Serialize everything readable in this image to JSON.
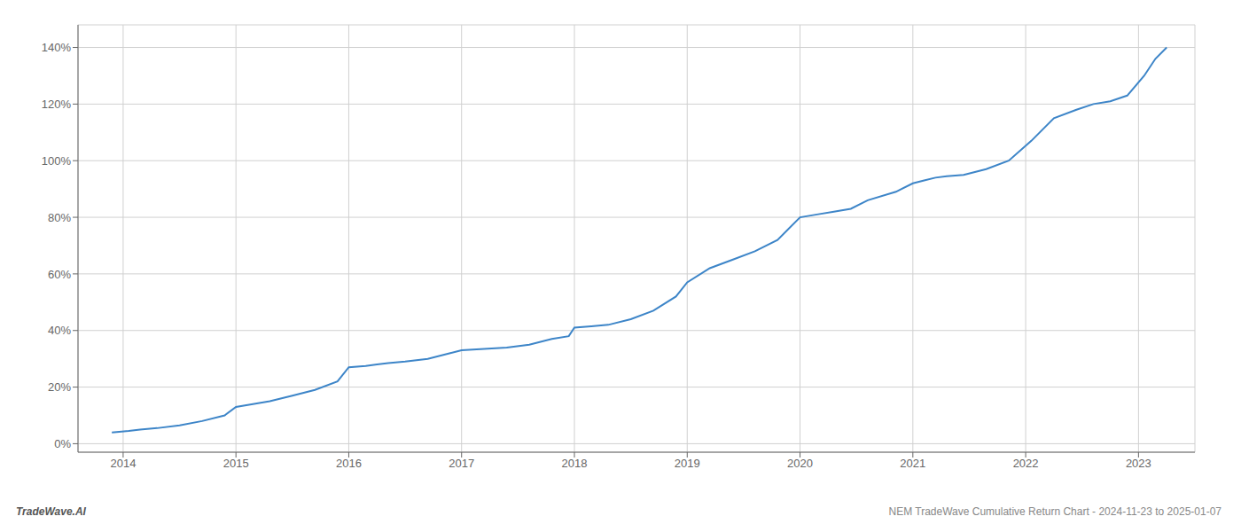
{
  "chart_data": {
    "type": "line",
    "annotations": [
      "TradeWave.AI",
      "NEM TradeWave Cumulative Return Chart - 2024-11-23 to 2025-01-07"
    ],
    "x": [
      2013.9,
      2014.05,
      2014.15,
      2014.3,
      2014.5,
      2014.7,
      2014.9,
      2015.0,
      2015.15,
      2015.3,
      2015.5,
      2015.7,
      2015.9,
      2016.0,
      2016.15,
      2016.25,
      2016.35,
      2016.5,
      2016.7,
      2016.9,
      2017.0,
      2017.2,
      2017.4,
      2017.6,
      2017.8,
      2017.95,
      2018.0,
      2018.15,
      2018.3,
      2018.5,
      2018.7,
      2018.9,
      2019.0,
      2019.2,
      2019.4,
      2019.6,
      2019.8,
      2020.0,
      2020.15,
      2020.3,
      2020.45,
      2020.6,
      2020.85,
      2021.0,
      2021.1,
      2021.2,
      2021.3,
      2021.45,
      2021.65,
      2021.85,
      2022.05,
      2022.25,
      2022.45,
      2022.6,
      2022.75,
      2022.9,
      2023.05,
      2023.15,
      2023.25
    ],
    "values": [
      4,
      4.5,
      5,
      5.5,
      6.5,
      8,
      10,
      13,
      14,
      15,
      17,
      19,
      22,
      27,
      27.5,
      28,
      28.5,
      29,
      30,
      32,
      33,
      33.5,
      34,
      35,
      37,
      38,
      41,
      41.5,
      42,
      44,
      47,
      52,
      57,
      62,
      65,
      68,
      72,
      80,
      81,
      82,
      83,
      86,
      89,
      92,
      93,
      94,
      94.5,
      95,
      97,
      100,
      107,
      115,
      118,
      120,
      121,
      123,
      130,
      136,
      140
    ],
    "color": "#3d85c8",
    "xlim": [
      2013.6,
      2023.5
    ],
    "xticks": [
      2014,
      2015,
      2016,
      2017,
      2018,
      2019,
      2020,
      2021,
      2022,
      2023
    ],
    "ylim": [
      -3,
      148
    ],
    "yticks": [
      {
        "value": 0,
        "label": "0%"
      },
      {
        "value": 20,
        "label": "20%"
      },
      {
        "value": 40,
        "label": "40%"
      },
      {
        "value": 60,
        "label": "60%"
      },
      {
        "value": 80,
        "label": "80%"
      },
      {
        "value": 100,
        "label": "100%"
      },
      {
        "value": 120,
        "label": "120%"
      },
      {
        "value": 140,
        "label": "140%"
      }
    ],
    "grid": true
  }
}
